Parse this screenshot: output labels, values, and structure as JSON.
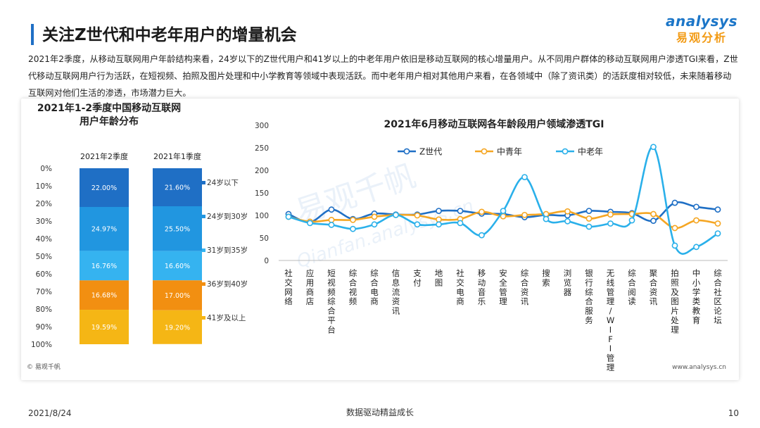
{
  "header": {
    "title": "关注Z世代和中老年用户的增量机会",
    "logo_en": "analysys",
    "logo_cn": "易观分析"
  },
  "intro": "2021年2季度，从移动互联网用户年龄结构来看，24岁以下的Z世代用户和41岁以上的中老年用户依旧是移动互联网的核心增量用户。从不同用户群体的移动互联网用户渗透TGI来看，Z世代移动互联网用户行为活跃，在短视频、拍照及图片处理和中小学教育等领域中表现活跃。而中老年用户相对其他用户来看，在各领域中（除了资讯类）的活跃度相对较低，未来随着移动互联网对他们生活的渗透，市场潜力巨大。",
  "panel": {
    "source_left": "© 易观千帆",
    "source_right": "www.analysys.cn",
    "watermark_cn": "易观千帆",
    "watermark_en": "Qianfan.analysys.cn"
  },
  "footer": {
    "date": "2021/8/24",
    "slogan": "数据驱动精益成长",
    "page": "10"
  },
  "chart_data": [
    {
      "type": "bar",
      "subtype": "stacked-100",
      "title": "2021年1-2季度中国移动互联网用户年龄分布",
      "title_lines": [
        "2021年1-2季度中国移动互联网",
        "用户年龄分布"
      ],
      "categories": [
        "2021年2季度",
        "2021年1季度"
      ],
      "series": [
        {
          "name": "24岁以下",
          "values": [
            22.0,
            21.6
          ],
          "labels": [
            "22.00%",
            "21.60%"
          ],
          "color": "#1f6fc5"
        },
        {
          "name": "24岁到30岁",
          "values": [
            24.97,
            25.5
          ],
          "labels": [
            "24.97%",
            "25.50%"
          ],
          "color": "#2196e0"
        },
        {
          "name": "31岁到35岁",
          "values": [
            16.76,
            16.6
          ],
          "labels": [
            "16.76%",
            "16.60%"
          ],
          "color": "#35b3f0"
        },
        {
          "name": "36岁到40岁",
          "values": [
            16.68,
            17.0
          ],
          "labels": [
            "16.68%",
            "17.00%"
          ],
          "color": "#f28f11"
        },
        {
          "name": "41岁及以上",
          "values": [
            19.59,
            19.2
          ],
          "labels": [
            "19.59%",
            "19.20%"
          ],
          "color": "#f5b615"
        }
      ],
      "yticks": [
        "0%",
        "10%",
        "20%",
        "30%",
        "40%",
        "50%",
        "60%",
        "70%",
        "80%",
        "90%",
        "100%"
      ],
      "ylim": [
        0,
        100
      ],
      "y_inverted": true,
      "legend": "right"
    },
    {
      "type": "line",
      "title": "2021年6月移动互联网各年龄段用户领域渗透TGI",
      "categories": [
        "社交网络",
        "应用商店",
        "短视频综合平台",
        "综合视频",
        "综合电商",
        "信息流资讯",
        "支付",
        "地图",
        "社交电商",
        "移动音乐",
        "安全管理",
        "综合资讯",
        "搜索",
        "浏览器",
        "银行综合服务",
        "无线管理/WIFI管理",
        "综合阅读",
        "聚合资讯",
        "拍照及图片处理",
        "中小学类教育",
        "综合社区论坛"
      ],
      "series": [
        {
          "name": "Z世代",
          "color": "#1f6fc5",
          "values": [
            103,
            85,
            113,
            92,
            104,
            102,
            102,
            110,
            110,
            104,
            103,
            96,
            101,
            100,
            110,
            108,
            105,
            88,
            128,
            119,
            113
          ]
        },
        {
          "name": "中青年",
          "color": "#f5a623",
          "values": [
            97,
            86,
            90,
            90,
            97,
            101,
            100,
            91,
            92,
            108,
            98,
            101,
            103,
            109,
            93,
            102,
            103,
            103,
            72,
            89,
            82
          ]
        },
        {
          "name": "中老年",
          "color": "#2ab0ea",
          "values": [
            97,
            83,
            79,
            70,
            80,
            101,
            80,
            80,
            83,
            56,
            110,
            185,
            92,
            87,
            75,
            82,
            89,
            252,
            33,
            30,
            60
          ]
        }
      ],
      "yticks": [
        "0",
        "50",
        "100",
        "150",
        "200",
        "250",
        "300"
      ],
      "ylim": [
        0,
        300
      ],
      "grid": false,
      "legend": "top"
    }
  ]
}
